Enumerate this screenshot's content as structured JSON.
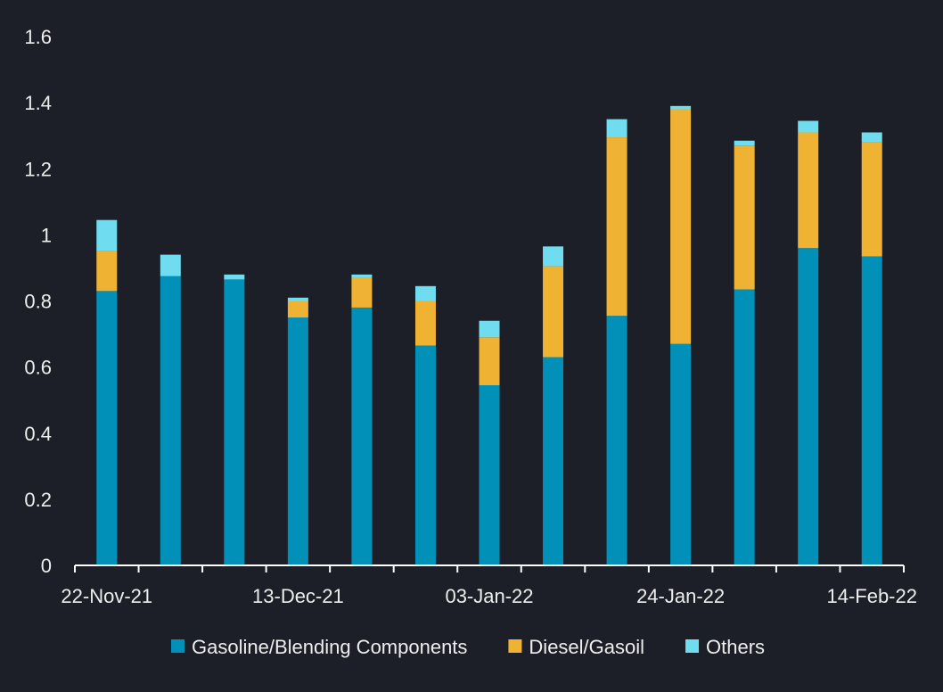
{
  "chart_data": {
    "type": "bar",
    "stacked": true,
    "title": "",
    "xlabel": "",
    "ylabel": "",
    "ylim": [
      0,
      1.6
    ],
    "yticks": [
      "0",
      "0.2",
      "0.4",
      "0.6",
      "0.8",
      "1",
      "1.2",
      "1.4",
      "1.6"
    ],
    "x": [
      "2021-11-22",
      "2021-11-29",
      "2021-12-06",
      "2021-12-13",
      "2021-12-20",
      "2021-12-27",
      "2022-01-03",
      "2022-01-10",
      "2022-01-17",
      "2022-01-24",
      "2022-01-31",
      "2022-02-07",
      "2022-02-14"
    ],
    "xtick_labels": [
      {
        "index": 0,
        "label": "22-Nov-21"
      },
      {
        "index": 3,
        "label": "13-Dec-21"
      },
      {
        "index": 6,
        "label": "03-Jan-22"
      },
      {
        "index": 9,
        "label": "24-Jan-22"
      },
      {
        "index": 12,
        "label": "14-Feb-22"
      }
    ],
    "grid": false,
    "legend_position": "bottom",
    "series": [
      {
        "name": "Gasoline/Blending Components",
        "color": "#0090b8",
        "values": [
          0.83,
          0.875,
          0.865,
          0.75,
          0.78,
          0.665,
          0.545,
          0.63,
          0.755,
          0.67,
          0.835,
          0.96,
          0.935
        ]
      },
      {
        "name": "Diesel/Gasoil",
        "color": "#f0b232",
        "values": [
          0.12,
          0.0,
          0.0,
          0.05,
          0.09,
          0.135,
          0.145,
          0.275,
          0.54,
          0.71,
          0.435,
          0.35,
          0.345
        ]
      },
      {
        "name": "Others",
        "color": "#6fdcef",
        "values": [
          0.095,
          0.065,
          0.015,
          0.01,
          0.01,
          0.045,
          0.05,
          0.06,
          0.055,
          0.01,
          0.015,
          0.035,
          0.03
        ]
      }
    ]
  }
}
